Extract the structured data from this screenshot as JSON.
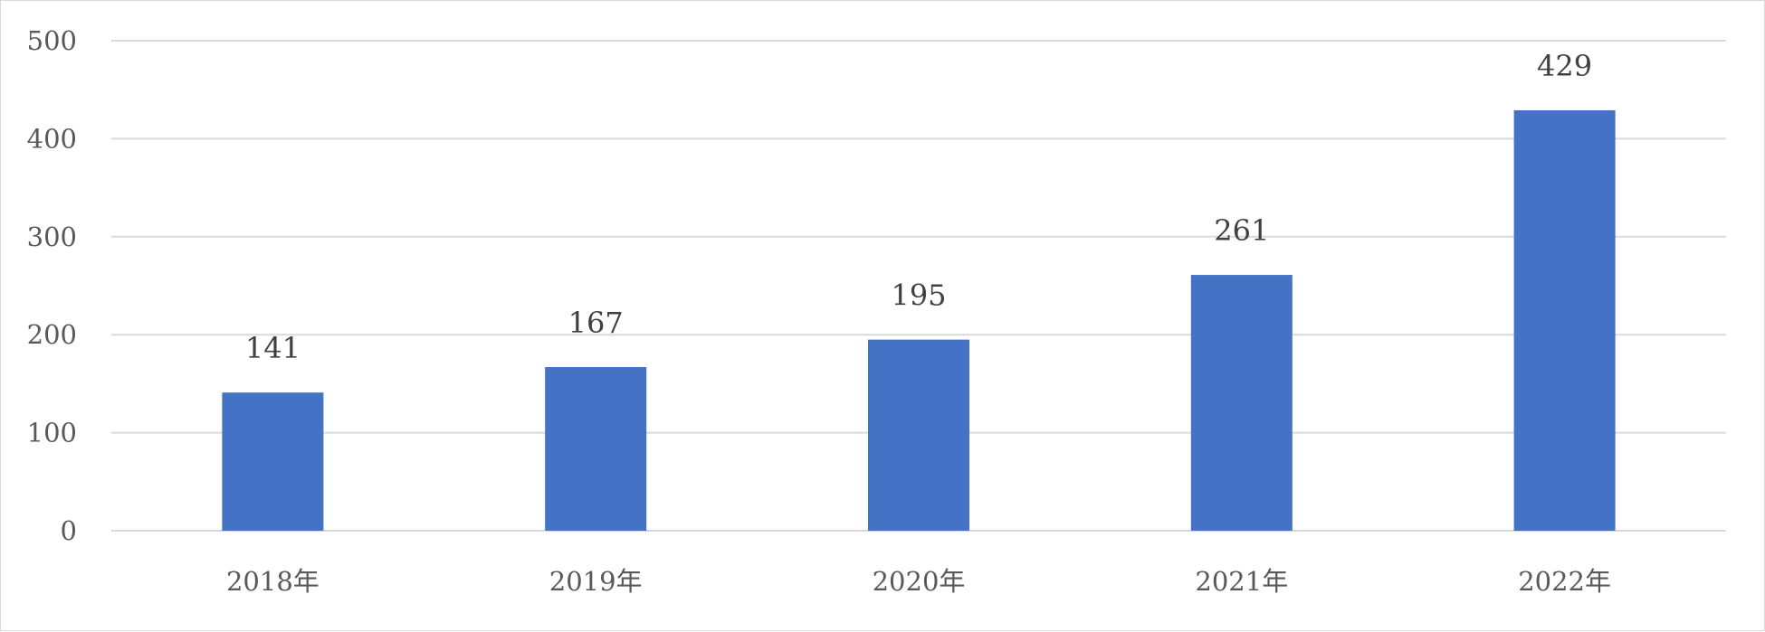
{
  "chart_data": {
    "type": "bar",
    "title": "",
    "xlabel": "",
    "ylabel": "",
    "categories": [
      "2018年",
      "2019年",
      "2020年",
      "2021年",
      "2022年"
    ],
    "series": [
      {
        "values": [
          141,
          167,
          195,
          261,
          429
        ],
        "color": "#4472c4"
      }
    ],
    "ylim": [
      0,
      500
    ],
    "yticks": [
      0,
      100,
      200,
      300,
      400,
      500
    ],
    "ytick_labels": [
      "0",
      "100",
      "200",
      "300",
      "400",
      "500"
    ],
    "data_labels": [
      "141",
      "167",
      "195",
      "261",
      "429"
    ],
    "grid": true,
    "legend": false
  }
}
